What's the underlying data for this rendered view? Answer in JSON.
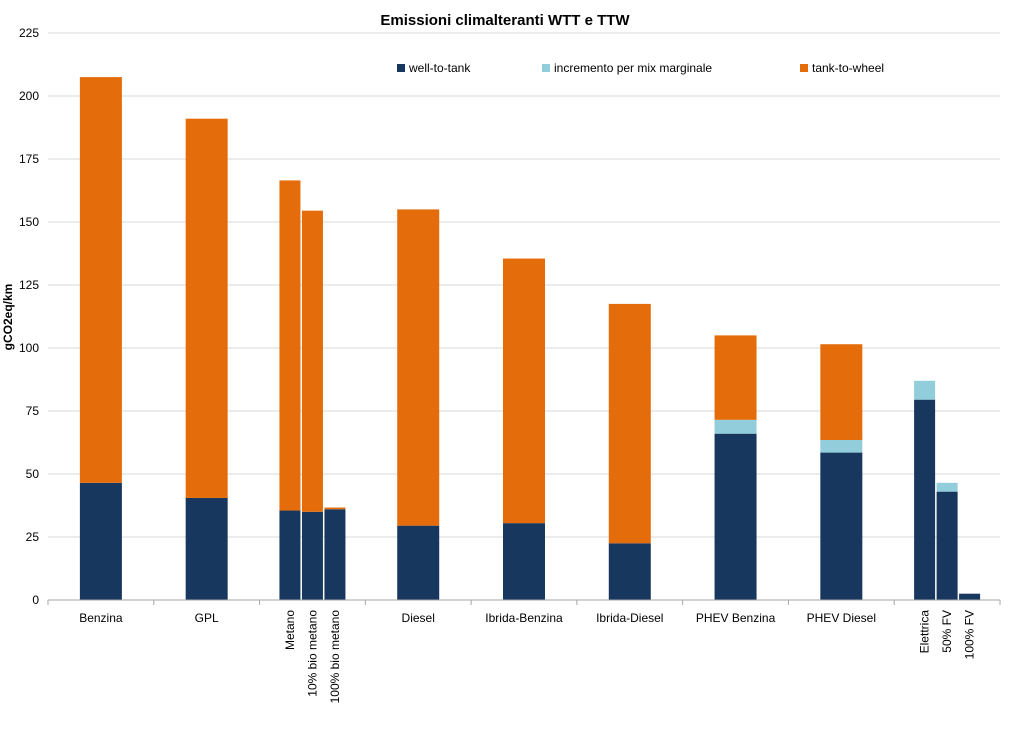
{
  "chart_data": {
    "type": "bar",
    "stacked": true,
    "title": "Emissioni climalteranti WTT e TTW",
    "ylabel": "gCO2eq/km",
    "xlabel": "",
    "ylim": [
      0,
      225
    ],
    "yticks": [
      0,
      25,
      50,
      75,
      100,
      125,
      150,
      175,
      200,
      225
    ],
    "grid": true,
    "legend_position": "top",
    "groups": [
      {
        "label": "Benzina",
        "bars": [
          {
            "label": "",
            "values": [
              46.5,
              0,
              161
            ]
          }
        ]
      },
      {
        "label": "GPL",
        "bars": [
          {
            "label": "",
            "values": [
              40.5,
              0,
              150.5
            ]
          }
        ]
      },
      {
        "label": "",
        "bars": [
          {
            "label": "Metano",
            "values": [
              35.5,
              0,
              131
            ]
          },
          {
            "label": "10%  bio metano",
            "values": [
              35,
              0,
              119.5
            ]
          },
          {
            "label": "100% bio metano",
            "values": [
              36,
              0,
              0.7
            ]
          }
        ]
      },
      {
        "label": "Diesel",
        "bars": [
          {
            "label": "",
            "values": [
              29.5,
              0,
              125.5
            ]
          }
        ]
      },
      {
        "label": "Ibrida-Benzina",
        "bars": [
          {
            "label": "",
            "values": [
              30.5,
              0,
              105
            ]
          }
        ]
      },
      {
        "label": "Ibrida-Diesel",
        "bars": [
          {
            "label": "",
            "values": [
              22.5,
              0,
              95
            ]
          }
        ]
      },
      {
        "label": "PHEV Benzina",
        "bars": [
          {
            "label": "",
            "values": [
              66,
              5.5,
              33.5
            ]
          }
        ]
      },
      {
        "label": "PHEV Diesel",
        "bars": [
          {
            "label": "",
            "values": [
              58.5,
              5,
              38
            ]
          }
        ]
      },
      {
        "label": "",
        "bars": [
          {
            "label": "Elettrica",
            "values": [
              79.5,
              7.5,
              0
            ]
          },
          {
            "label": "50%  FV",
            "values": [
              43,
              3.5,
              0
            ]
          },
          {
            "label": "100% FV",
            "values": [
              2.5,
              0,
              0
            ]
          }
        ]
      }
    ],
    "series": [
      {
        "name": "well-to-tank",
        "color": "#17375e"
      },
      {
        "name": "incremento per mix marginale",
        "color": "#92cddc"
      },
      {
        "name": "tank-to-wheel",
        "color": "#e46c0a"
      }
    ]
  }
}
